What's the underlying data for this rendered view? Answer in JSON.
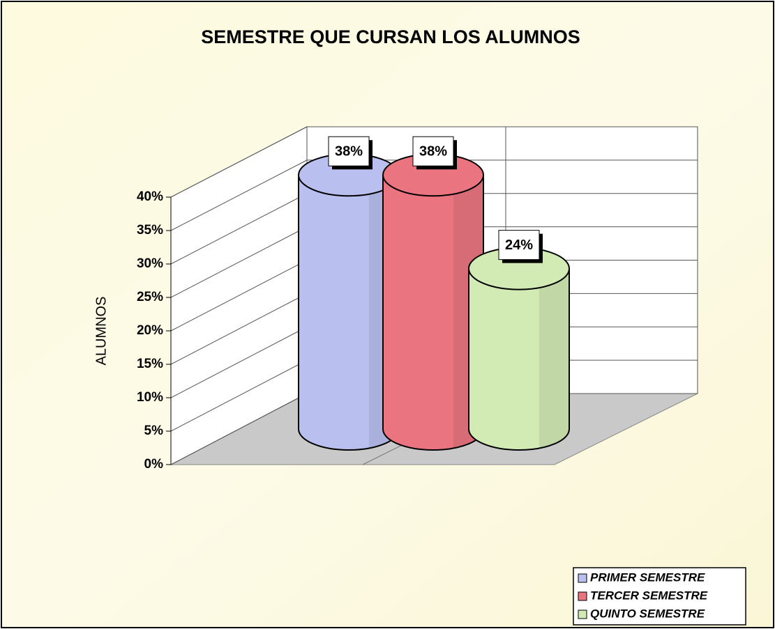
{
  "chart_data": {
    "type": "bar",
    "title": "SEMESTRE QUE CURSAN LOS ALUMNOS",
    "y_label": "ALUMNOS",
    "series": [
      {
        "name": "PRIMER SEMESTRE",
        "color": "#b9bfef",
        "values": [
          38
        ],
        "value_labels": [
          "38%"
        ]
      },
      {
        "name": "TERCER SEMESTRE",
        "color": "#ea7580",
        "values": [
          38
        ],
        "value_labels": [
          "38%"
        ]
      },
      {
        "name": "QUINTO SEMESTRE",
        "color": "#d2eab4",
        "values": [
          24
        ],
        "value_labels": [
          "24%"
        ]
      }
    ],
    "ylim": [
      0,
      40
    ],
    "yticks": [
      {
        "value": 0,
        "label": "0%"
      },
      {
        "value": 5,
        "label": "5%"
      },
      {
        "value": 10,
        "label": "10%"
      },
      {
        "value": 15,
        "label": "15%"
      },
      {
        "value": 20,
        "label": "20%"
      },
      {
        "value": 25,
        "label": "25%"
      },
      {
        "value": 30,
        "label": "30%"
      },
      {
        "value": 35,
        "label": "35%"
      },
      {
        "value": 40,
        "label": "40%"
      }
    ],
    "grid": true,
    "legend": "bottom-right"
  }
}
